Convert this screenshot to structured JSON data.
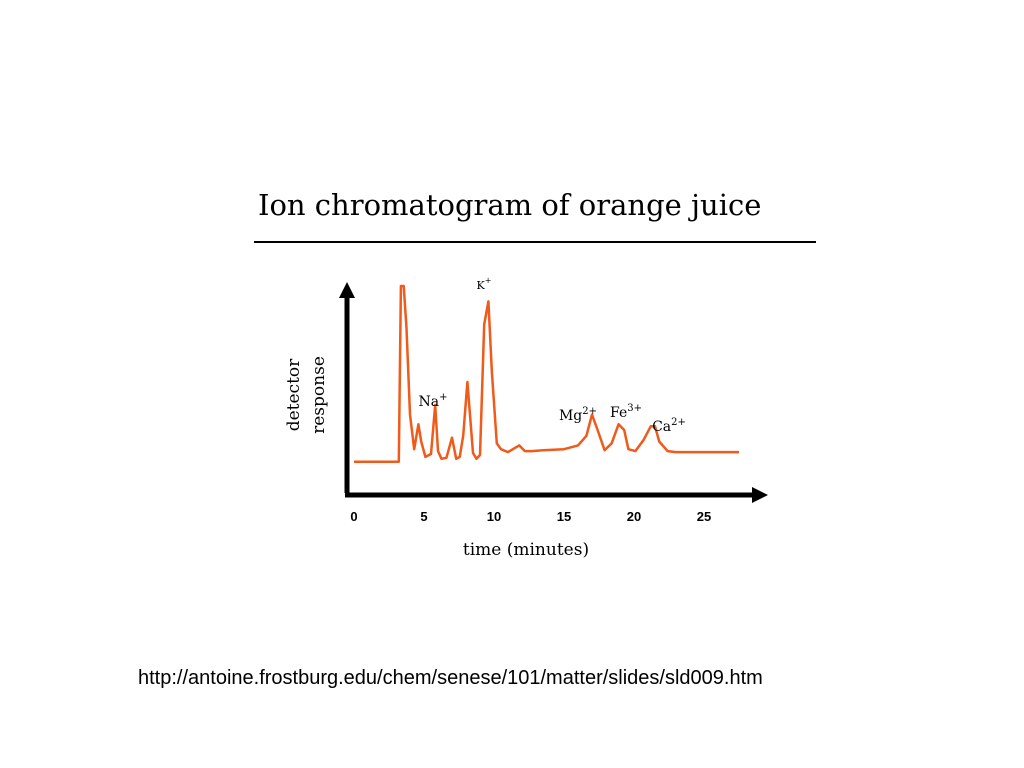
{
  "chart_data": {
    "type": "line",
    "title": "Ion chromatogram of orange juice",
    "xlabel": "time (minutes)",
    "ylabel_lines": [
      "detector",
      "response"
    ],
    "x_ticks": [
      0,
      5,
      10,
      15,
      20,
      25
    ],
    "xlim": [
      0,
      30
    ],
    "ylim": [
      0,
      100
    ],
    "color": "#f05a1a",
    "series": [
      {
        "x": [
          0.0,
          3.2,
          3.35,
          3.55,
          3.75,
          4.0,
          4.3,
          4.6,
          4.8,
          5.1,
          5.5,
          5.8,
          6.0,
          6.25,
          6.6,
          7.0,
          7.3,
          7.55,
          7.8,
          8.1,
          8.5,
          8.75,
          9.0,
          9.3,
          9.6,
          9.85,
          10.2,
          10.5,
          11.0,
          11.8,
          12.2,
          12.7,
          13.5,
          15.0,
          16.0,
          16.6,
          17.0,
          17.4,
          17.9,
          18.4,
          18.9,
          19.3,
          19.6,
          20.1,
          20.7,
          21.2,
          21.5,
          21.8,
          22.4,
          23.0,
          27.5
        ],
        "y": [
          8.5,
          8.5,
          100.0,
          100.0,
          78.0,
          33.0,
          15.0,
          28.0,
          19.0,
          11.0,
          12.5,
          38.0,
          14.0,
          10.0,
          10.5,
          21.0,
          10.0,
          11.0,
          22.0,
          50.0,
          13.0,
          10.0,
          12.0,
          80.0,
          92.0,
          55.0,
          18.0,
          15.0,
          13.5,
          17.0,
          14.0,
          14.0,
          14.5,
          15.0,
          17.0,
          22.0,
          33.0,
          25.0,
          14.5,
          18.0,
          28.0,
          25.0,
          15.0,
          14.0,
          20.0,
          27.0,
          27.0,
          19.0,
          14.0,
          13.5,
          13.5
        ]
      }
    ],
    "annotations": [
      {
        "base": "Na",
        "charge": "+",
        "x": 5.8
      },
      {
        "base": "K",
        "charge": "+",
        "x": 9.85
      },
      {
        "base": "Mg",
        "charge": "2+",
        "x": 17.0
      },
      {
        "base": "Fe",
        "charge": "3+",
        "x": 19.3
      },
      {
        "base": "Ca",
        "charge": "2+",
        "x": 21.5
      }
    ]
  },
  "source_url": "http://antoine.frostburg.edu/chem/senese/101/matter/slides/sld009.htm"
}
